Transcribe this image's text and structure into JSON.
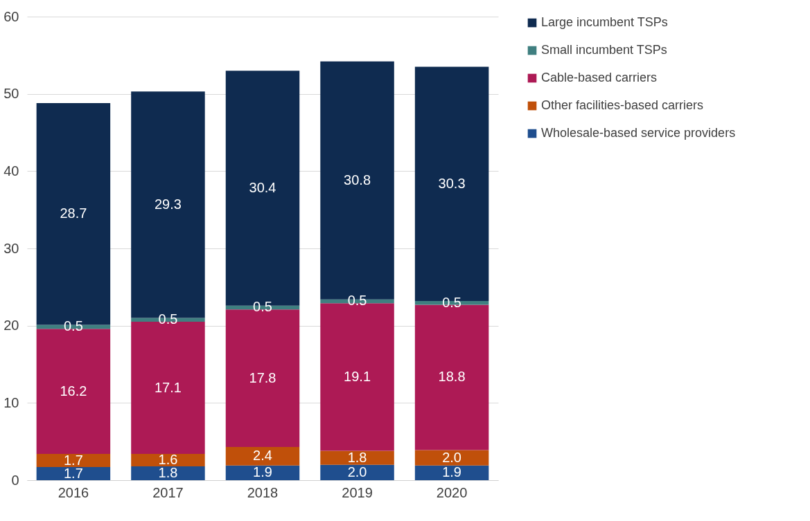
{
  "chart_data": {
    "type": "bar",
    "stacked": true,
    "categories": [
      "2016",
      "2017",
      "2018",
      "2019",
      "2020"
    ],
    "series": [
      {
        "name": "Wholesale-based service providers",
        "color": "#1f4e8e",
        "values": [
          1.7,
          1.8,
          1.9,
          2.0,
          1.9
        ],
        "value_labels": [
          "1.7",
          "1.8",
          "1.9",
          "2.0",
          "1.9"
        ]
      },
      {
        "name": "Other facilities-based carriers",
        "color": "#c0500a",
        "values": [
          1.7,
          1.6,
          2.4,
          1.8,
          2.0
        ],
        "value_labels": [
          "1.7",
          "1.6",
          "2.4",
          "1.8",
          "2.0"
        ]
      },
      {
        "name": "Cable-based carriers",
        "color": "#ad1a55",
        "values": [
          16.2,
          17.1,
          17.8,
          19.1,
          18.8
        ],
        "value_labels": [
          "16.2",
          "17.1",
          "17.8",
          "19.1",
          "18.8"
        ]
      },
      {
        "name": "Small incumbent TSPs",
        "color": "#3f7f80",
        "values": [
          0.5,
          0.5,
          0.5,
          0.5,
          0.5
        ],
        "value_labels": [
          "0.5",
          "0.5",
          "0.5",
          "0.5",
          "0.5"
        ]
      },
      {
        "name": "Large incumbent TSPs",
        "color": "#0f2b50",
        "values": [
          28.7,
          29.3,
          30.4,
          30.8,
          30.3
        ],
        "value_labels": [
          "28.7",
          "29.3",
          "30.4",
          "30.8",
          "30.3"
        ]
      }
    ],
    "ylim": [
      0,
      60
    ],
    "yticks": [
      0,
      10,
      20,
      30,
      40,
      50,
      60
    ],
    "grid": "y",
    "legend": "right"
  }
}
